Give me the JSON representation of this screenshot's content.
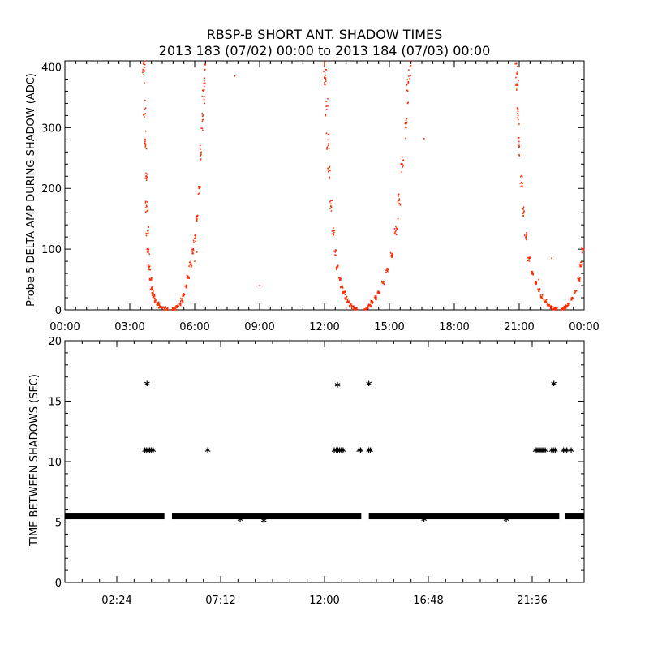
{
  "title": "RBSP-B SHORT ANT. SHADOW TIMES",
  "subtitle": "2013 183 (07/02) 00:00 to 2013 184 (07/03) 00:00",
  "colors": {
    "top_points": "#ff2a00",
    "bottom_points": "#000000",
    "axes": "#000000"
  },
  "chart_data": [
    {
      "type": "scatter",
      "ylabel": "Probe 5 DELTA AMP DURING SHADOW (ADC)",
      "xlim": [
        "00:00",
        "24:00"
      ],
      "ylim": [
        0,
        410
      ],
      "x_ticks": [
        "00:00",
        "03:00",
        "06:00",
        "09:00",
        "12:00",
        "15:00",
        "18:00",
        "21:00",
        "00:00"
      ],
      "y_ticks": [
        "0",
        "100",
        "200",
        "300",
        "400"
      ],
      "series": [
        {
          "color": "#ff2a00",
          "points": [
            [
              3.62,
              405
            ],
            [
              3.65,
              395
            ],
            [
              3.68,
              330
            ],
            [
              3.72,
              280
            ],
            [
              3.75,
              220
            ],
            [
              3.78,
              170
            ],
            [
              3.82,
              130
            ],
            [
              3.86,
              95
            ],
            [
              3.9,
              70
            ],
            [
              3.95,
              50
            ],
            [
              4.0,
              35
            ],
            [
              4.05,
              28
            ],
            [
              4.1,
              22
            ],
            [
              4.2,
              15
            ],
            [
              4.3,
              10
            ],
            [
              4.4,
              6
            ],
            [
              4.5,
              3
            ],
            [
              4.6,
              2
            ],
            [
              4.7,
              1
            ],
            [
              5.0,
              1
            ],
            [
              5.1,
              3
            ],
            [
              5.2,
              6
            ],
            [
              5.3,
              10
            ],
            [
              5.4,
              16
            ],
            [
              5.5,
              25
            ],
            [
              5.6,
              38
            ],
            [
              5.7,
              55
            ],
            [
              5.8,
              75
            ],
            [
              5.9,
              95
            ],
            [
              6.0,
              118
            ],
            [
              6.1,
              150
            ],
            [
              6.2,
              200
            ],
            [
              6.3,
              260
            ],
            [
              6.35,
              310
            ],
            [
              6.4,
              360
            ],
            [
              6.45,
              395
            ],
            [
              12.0,
              405
            ],
            [
              12.05,
              380
            ],
            [
              12.1,
              330
            ],
            [
              12.15,
              280
            ],
            [
              12.2,
              230
            ],
            [
              12.3,
              170
            ],
            [
              12.4,
              130
            ],
            [
              12.5,
              95
            ],
            [
              12.6,
              70
            ],
            [
              12.7,
              50
            ],
            [
              12.8,
              38
            ],
            [
              12.9,
              28
            ],
            [
              13.0,
              20
            ],
            [
              13.1,
              14
            ],
            [
              13.2,
              9
            ],
            [
              13.3,
              5
            ],
            [
              13.4,
              2
            ],
            [
              13.5,
              1
            ],
            [
              13.9,
              1
            ],
            [
              14.0,
              4
            ],
            [
              14.1,
              8
            ],
            [
              14.2,
              13
            ],
            [
              14.35,
              20
            ],
            [
              14.5,
              30
            ],
            [
              14.7,
              45
            ],
            [
              14.9,
              65
            ],
            [
              15.1,
              90
            ],
            [
              15.3,
              130
            ],
            [
              15.45,
              180
            ],
            [
              15.6,
              240
            ],
            [
              15.75,
              300
            ],
            [
              15.85,
              360
            ],
            [
              15.95,
              400
            ],
            [
              20.85,
              405
            ],
            [
              20.9,
              370
            ],
            [
              20.95,
              320
            ],
            [
              21.0,
              270
            ],
            [
              21.1,
              210
            ],
            [
              21.2,
              160
            ],
            [
              21.3,
              120
            ],
            [
              21.45,
              85
            ],
            [
              21.6,
              60
            ],
            [
              21.75,
              45
            ],
            [
              21.9,
              32
            ],
            [
              22.05,
              22
            ],
            [
              22.2,
              14
            ],
            [
              22.35,
              8
            ],
            [
              22.5,
              4
            ],
            [
              22.6,
              2
            ],
            [
              22.7,
              1
            ],
            [
              23.0,
              1
            ],
            [
              23.1,
              3
            ],
            [
              23.2,
              6
            ],
            [
              23.3,
              10
            ],
            [
              23.45,
              18
            ],
            [
              23.6,
              30
            ],
            [
              23.75,
              50
            ],
            [
              23.85,
              75
            ],
            [
              23.95,
              100
            ],
            [
              7.85,
              385
            ],
            [
              9.0,
              40
            ],
            [
              16.6,
              282
            ],
            [
              22.5,
              85
            ],
            [
              6.1,
              95
            ],
            [
              6.0,
              80
            ],
            [
              15.4,
              150
            ],
            [
              21.9,
              50
            ]
          ]
        }
      ]
    },
    {
      "type": "scatter",
      "ylabel": "TIME BETWEEN SHADOWS (SEC)",
      "xlim": [
        0,
        24
      ],
      "ylim": [
        0,
        20
      ],
      "x_ticks": [
        "02:24",
        "07:12",
        "12:00",
        "16:48",
        "21:36"
      ],
      "y_ticks": [
        "0",
        "5",
        "10",
        "15",
        "20"
      ],
      "baseline_value": 5.5,
      "baseline_segments": [
        [
          0.0,
          4.6
        ],
        [
          4.95,
          13.7
        ],
        [
          14.05,
          22.85
        ],
        [
          23.1,
          24.0
        ]
      ],
      "series": [
        {
          "color": "#000000",
          "points": [
            [
              3.8,
              16.5
            ],
            [
              12.6,
              16.4
            ],
            [
              14.05,
              16.5
            ],
            [
              22.6,
              16.5
            ],
            [
              3.7,
              11
            ],
            [
              3.78,
              11
            ],
            [
              3.85,
              11
            ],
            [
              3.92,
              11
            ],
            [
              4.0,
              11
            ],
            [
              4.08,
              11
            ],
            [
              6.6,
              11
            ],
            [
              12.45,
              11
            ],
            [
              12.55,
              11
            ],
            [
              12.62,
              11
            ],
            [
              12.7,
              11
            ],
            [
              12.78,
              11
            ],
            [
              12.86,
              11
            ],
            [
              13.6,
              11
            ],
            [
              13.67,
              11
            ],
            [
              14.05,
              11
            ],
            [
              14.12,
              11
            ],
            [
              21.75,
              11
            ],
            [
              21.82,
              11
            ],
            [
              21.9,
              11
            ],
            [
              21.97,
              11
            ],
            [
              22.05,
              11
            ],
            [
              22.12,
              11
            ],
            [
              22.2,
              11
            ],
            [
              22.5,
              11
            ],
            [
              22.58,
              11
            ],
            [
              22.66,
              11
            ],
            [
              23.05,
              11
            ],
            [
              23.12,
              11
            ],
            [
              23.2,
              11
            ],
            [
              23.4,
              11
            ],
            [
              8.1,
              5.3
            ],
            [
              9.2,
              5.2
            ],
            [
              16.6,
              5.3
            ],
            [
              20.4,
              5.3
            ],
            [
              21.3,
              5.6
            ]
          ]
        }
      ]
    }
  ]
}
